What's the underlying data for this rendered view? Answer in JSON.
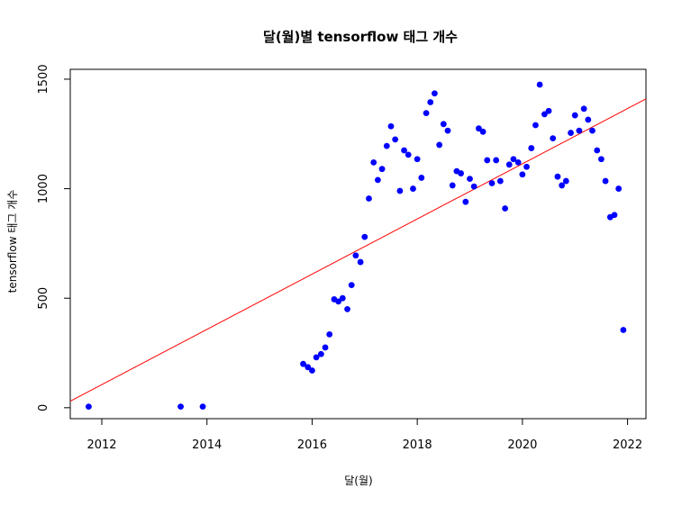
{
  "chart_data": {
    "type": "scatter",
    "title": "달(월)별 tensorflow 태그 개수",
    "xlabel": "달(월)",
    "ylabel": "tensorflow 태그 개수",
    "xlim": [
      2011.4,
      2022.35
    ],
    "ylim": [
      -50,
      1545
    ],
    "xticks": [
      2012,
      2014,
      2016,
      2018,
      2020,
      2022
    ],
    "yticks": [
      0,
      500,
      1000,
      1500
    ],
    "grid": false,
    "point_color": "#0000ff",
    "trend_color": "#ff0000",
    "trend_line": {
      "x": [
        2011.4,
        2022.35
      ],
      "y": [
        30,
        1410
      ]
    },
    "series": [
      {
        "x": [
          2011.75,
          2013.5,
          2013.92,
          2015.83,
          2015.92,
          2016.0,
          2016.08,
          2016.17,
          2016.25,
          2016.33,
          2016.42,
          2016.5,
          2016.58,
          2016.67,
          2016.75,
          2016.83,
          2016.92,
          2017.0,
          2017.08,
          2017.17,
          2017.25,
          2017.33,
          2017.42,
          2017.5,
          2017.58,
          2017.67,
          2017.75,
          2017.83,
          2017.92,
          2018.0,
          2018.08,
          2018.17,
          2018.25,
          2018.33,
          2018.42,
          2018.5,
          2018.58,
          2018.67,
          2018.75,
          2018.83,
          2018.92,
          2019.0,
          2019.08,
          2019.17,
          2019.25,
          2019.33,
          2019.42,
          2019.5,
          2019.58,
          2019.67,
          2019.75,
          2019.83,
          2019.92,
          2020.0,
          2020.08,
          2020.17,
          2020.25,
          2020.33,
          2020.42,
          2020.5,
          2020.58,
          2020.67,
          2020.75,
          2020.83,
          2020.92,
          2021.0,
          2021.08,
          2021.17,
          2021.25,
          2021.33,
          2021.42,
          2021.5,
          2021.58,
          2021.67,
          2021.75,
          2021.83,
          2021.92
        ],
        "y": [
          5,
          5,
          5,
          200,
          185,
          170,
          230,
          245,
          275,
          335,
          495,
          485,
          500,
          450,
          560,
          695,
          665,
          780,
          955,
          1120,
          1040,
          1090,
          1195,
          1285,
          1225,
          990,
          1175,
          1155,
          1000,
          1135,
          1050,
          1345,
          1395,
          1435,
          1200,
          1295,
          1265,
          1015,
          1080,
          1070,
          940,
          1045,
          1010,
          1275,
          1260,
          1130,
          1025,
          1130,
          1035,
          910,
          1110,
          1135,
          1120,
          1065,
          1100,
          1185,
          1290,
          1475,
          1340,
          1355,
          1230,
          1055,
          1015,
          1035,
          1255,
          1335,
          1265,
          1365,
          1315,
          1265,
          1175,
          1135,
          1035,
          870,
          880,
          1000,
          355
        ]
      }
    ]
  }
}
